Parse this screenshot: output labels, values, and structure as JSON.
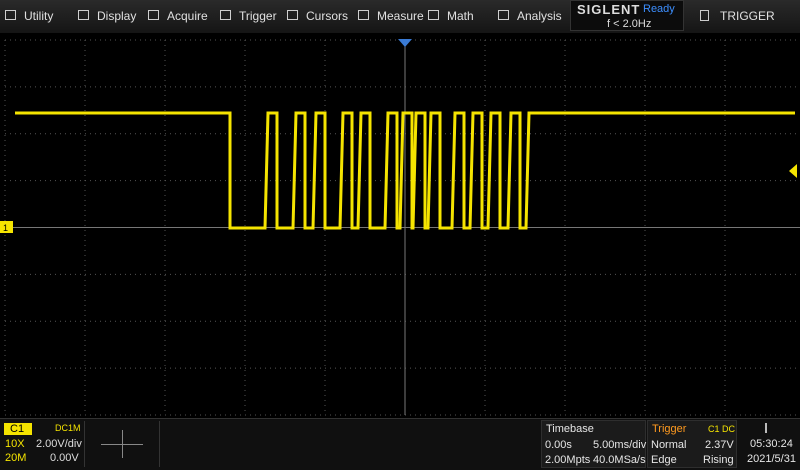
{
  "menu": [
    "Utility",
    "Display",
    "Acquire",
    "Trigger",
    "Cursors",
    "Measure",
    "Math",
    "Analysis"
  ],
  "brand": "SIGLENT",
  "status": "Ready",
  "frequency": "f < 2.0Hz",
  "panel_button": "TRIGGER",
  "channel_marker": "1",
  "channel": {
    "name": "C1",
    "coupling": "DC1M",
    "probe": "10X",
    "scale": "2.00V/div",
    "bandwidth": "20M",
    "offset": "0.00V"
  },
  "timebase": {
    "title": "Timebase",
    "delay": "0.00s",
    "scale": "5.00ms/div",
    "memory": "2.00Mpts",
    "sample_rate": "40.0MSa/s"
  },
  "trigger": {
    "title": "Trigger",
    "source": "C1 DC",
    "mode": "Normal",
    "level": "2.37V",
    "type": "Edge",
    "slope": "Rising"
  },
  "clock": {
    "time": "05:30:24",
    "date": "2021/5/31"
  }
}
